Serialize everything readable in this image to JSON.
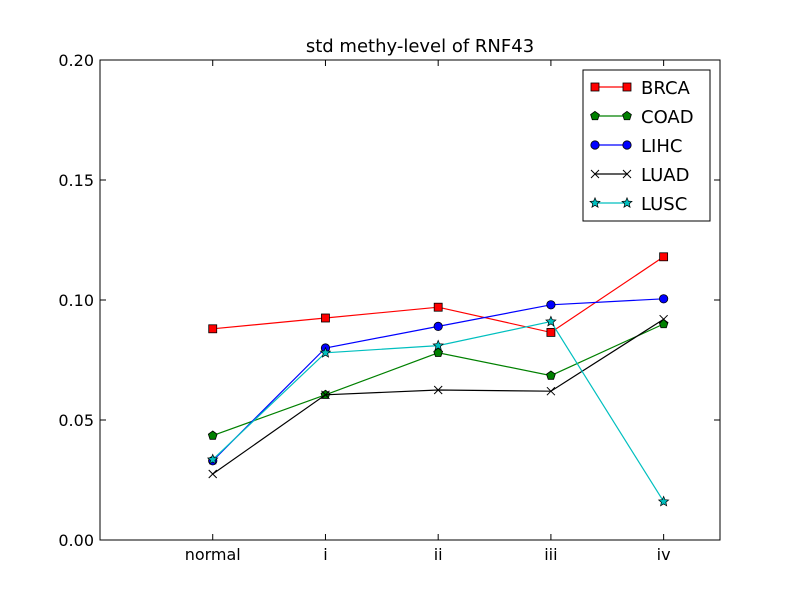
{
  "chart_data": {
    "type": "line",
    "title": "std methy-level of RNF43",
    "xlabel": "",
    "ylabel": "",
    "categories": [
      "normal",
      "i",
      "ii",
      "iii",
      "iv"
    ],
    "x_axis_range": [
      -1,
      4.5
    ],
    "ylim": [
      0.0,
      0.2
    ],
    "y_ticks": [
      0.0,
      0.05,
      0.1,
      0.15,
      0.2
    ],
    "y_tick_labels": [
      "0.00",
      "0.05",
      "0.10",
      "0.15",
      "0.20"
    ],
    "grid": false,
    "legend_position": "top-right",
    "series": [
      {
        "name": "BRCA",
        "color": "#ff0000",
        "marker": "square",
        "values": [
          0.088,
          0.0925,
          0.097,
          0.0865,
          0.118
        ]
      },
      {
        "name": "COAD",
        "color": "#008000",
        "marker": "pentagon",
        "values": [
          0.0435,
          0.0605,
          0.078,
          0.0685,
          0.09
        ]
      },
      {
        "name": "LIHC",
        "color": "#0000ff",
        "marker": "circle",
        "values": [
          0.033,
          0.08,
          0.089,
          0.098,
          0.1005
        ]
      },
      {
        "name": "LUAD",
        "color": "#000000",
        "marker": "x",
        "values": [
          0.0275,
          0.0605,
          0.0625,
          0.062,
          0.092
        ]
      },
      {
        "name": "LUSC",
        "color": "#00bfbf",
        "marker": "star",
        "values": [
          0.0335,
          0.078,
          0.081,
          0.091,
          0.016
        ]
      }
    ]
  }
}
